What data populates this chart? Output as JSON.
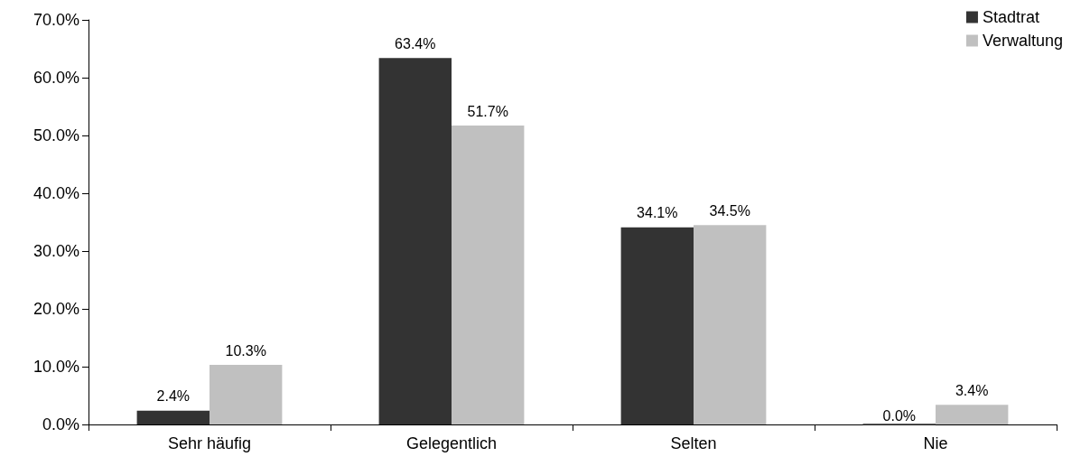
{
  "chart_data": {
    "type": "bar",
    "categories": [
      "Sehr häufig",
      "Gelegentlich",
      "Selten",
      "Nie"
    ],
    "series": [
      {
        "name": "Stadtrat",
        "color": "#333333",
        "values": [
          2.4,
          63.4,
          34.1,
          0.0
        ],
        "value_labels": [
          "2.4%",
          "63.4%",
          "34.1%",
          "0.0%"
        ]
      },
      {
        "name": "Verwaltung",
        "color": "#c0c0c0",
        "values": [
          10.3,
          51.7,
          34.5,
          3.4
        ],
        "value_labels": [
          "10.3%",
          "51.7%",
          "34.5%",
          "3.4%"
        ]
      }
    ],
    "ylim": [
      0,
      70
    ],
    "yticks": [
      {
        "value": 0,
        "label": "0.0%"
      },
      {
        "value": 10,
        "label": "10.0%"
      },
      {
        "value": 20,
        "label": "20.0%"
      },
      {
        "value": 30,
        "label": "30.0%"
      },
      {
        "value": 40,
        "label": "40.0%"
      },
      {
        "value": 50,
        "label": "50.0%"
      },
      {
        "value": 60,
        "label": "60.0%"
      },
      {
        "value": 70,
        "label": "70.0%"
      }
    ],
    "grid": false,
    "legend": "top right"
  }
}
